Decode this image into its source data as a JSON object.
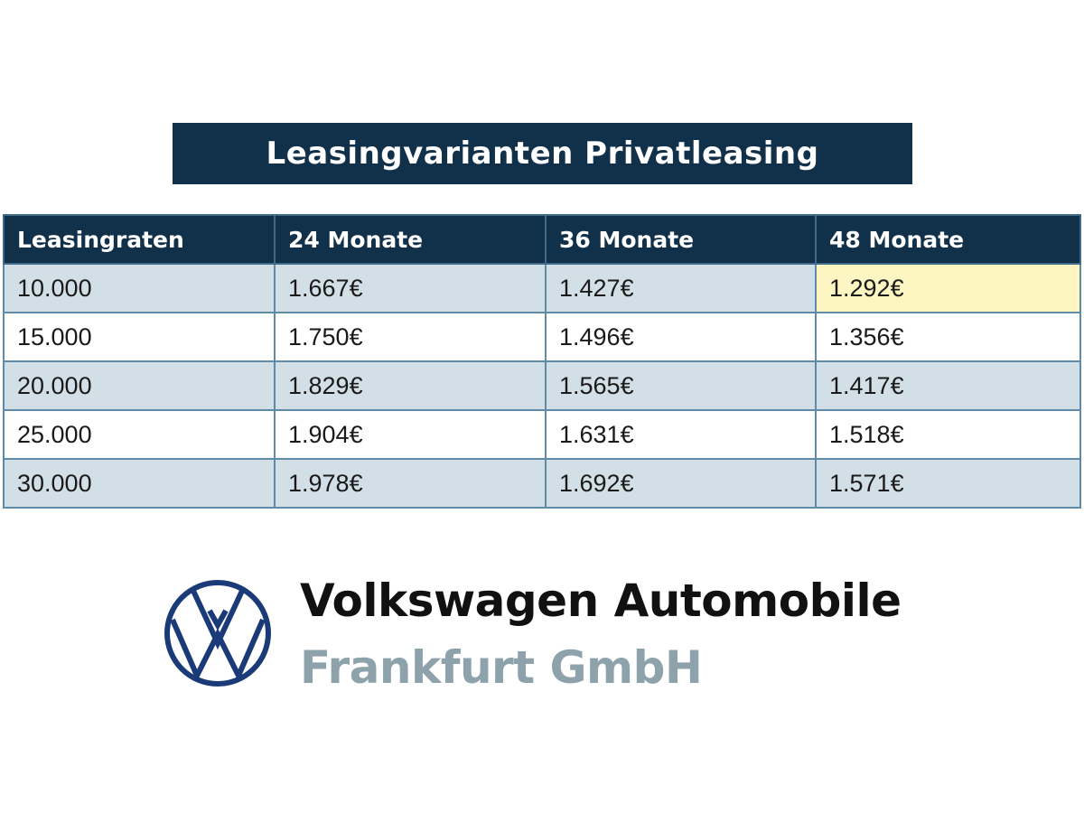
{
  "title": "Leasingvarianten Privatleasing",
  "table": {
    "headers": [
      "Leasingraten",
      "24 Monate",
      "36 Monate",
      "48 Monate"
    ],
    "rows": [
      [
        "10.000",
        "1.667€",
        "1.427€",
        "1.292€"
      ],
      [
        "15.000",
        "1.750€",
        "1.496€",
        "1.356€"
      ],
      [
        "20.000",
        "1.829€",
        "1.565€",
        "1.417€"
      ],
      [
        "25.000",
        "1.904€",
        "1.631€",
        "1.518€"
      ],
      [
        "30.000",
        "1.978€",
        "1.692€",
        "1.571€"
      ]
    ],
    "highlighted_cell": {
      "row": 0,
      "col": 3,
      "color": "#fdf5c2"
    }
  },
  "brand": {
    "line1": "Volkswagen Automobile",
    "line2": "Frankfurt GmbH",
    "logo": "vw-logo-icon",
    "logo_color": "#1b3a78"
  },
  "colors": {
    "header": "#11304a",
    "band": "#d3dfe6",
    "border": "#5f8aa8"
  }
}
